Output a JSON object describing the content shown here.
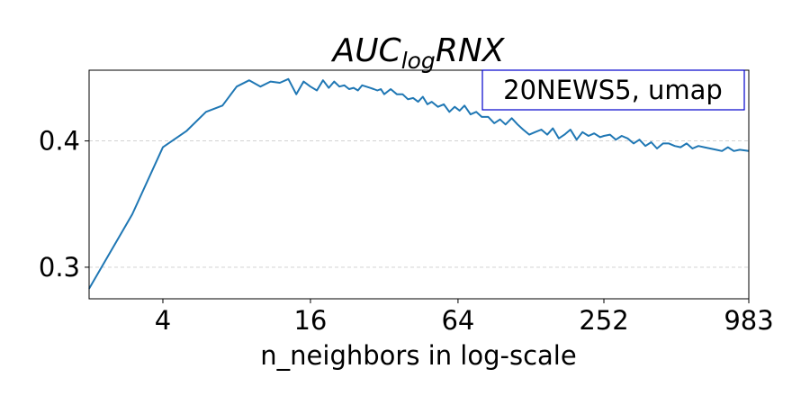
{
  "chart_data": {
    "type": "line",
    "title": "AUC",
    "title_subscript": "log",
    "title_suffix": "RNX",
    "xlabel": "n_neighbors in log-scale",
    "ylabel": "",
    "x_scale": "log2",
    "xlim": [
      2,
      983
    ],
    "ylim": [
      0.275,
      0.456
    ],
    "xticks": [
      4,
      16,
      64,
      252,
      983
    ],
    "xtick_labels": [
      "4",
      "16",
      "64",
      "252",
      "983"
    ],
    "yticks": [
      0.3,
      0.4
    ],
    "ytick_labels": [
      "0.3",
      "0.4"
    ],
    "grid": "y dashed",
    "legend_box": "20NEWS5, umap",
    "legend_placement": "top-right",
    "line_color": "#1f77b4",
    "legend_border_color": "#0000cc",
    "series": [
      {
        "x": [
          2,
          3,
          4,
          5,
          6,
          7,
          8,
          9,
          10,
          11,
          12,
          13,
          14,
          15,
          16,
          17,
          18,
          19,
          20,
          21,
          22,
          23,
          24,
          25,
          26,
          27,
          28,
          29,
          30,
          31,
          32,
          34,
          36,
          38,
          40,
          42,
          44,
          46,
          48,
          50,
          53,
          56,
          59,
          62,
          65,
          68,
          72,
          76,
          80,
          85,
          90,
          95,
          100,
          106,
          112,
          118,
          125,
          132,
          140,
          148,
          156,
          165,
          174,
          184,
          195,
          206,
          218,
          230,
          243,
          252,
          267,
          282,
          298,
          315,
          333,
          352,
          372,
          393,
          415,
          439,
          464,
          490,
          518,
          548,
          579,
          612,
          647,
          684,
          723,
          764,
          808,
          854,
          903,
          983
        ],
        "y": [
          0.283,
          0.342,
          0.395,
          0.408,
          0.423,
          0.428,
          0.443,
          0.448,
          0.443,
          0.447,
          0.446,
          0.449,
          0.437,
          0.447,
          0.443,
          0.44,
          0.448,
          0.442,
          0.447,
          0.443,
          0.444,
          0.441,
          0.442,
          0.44,
          0.444,
          0.443,
          0.442,
          0.441,
          0.44,
          0.441,
          0.437,
          0.441,
          0.437,
          0.437,
          0.433,
          0.434,
          0.431,
          0.435,
          0.429,
          0.431,
          0.427,
          0.429,
          0.423,
          0.427,
          0.424,
          0.428,
          0.421,
          0.423,
          0.419,
          0.419,
          0.414,
          0.417,
          0.413,
          0.418,
          0.413,
          0.409,
          0.405,
          0.407,
          0.409,
          0.405,
          0.41,
          0.402,
          0.405,
          0.409,
          0.401,
          0.407,
          0.404,
          0.406,
          0.403,
          0.404,
          0.405,
          0.401,
          0.404,
          0.402,
          0.398,
          0.401,
          0.396,
          0.399,
          0.394,
          0.398,
          0.398,
          0.396,
          0.395,
          0.398,
          0.394,
          0.396,
          0.395,
          0.394,
          0.393,
          0.392,
          0.395,
          0.392,
          0.393,
          0.392
        ]
      }
    ]
  }
}
